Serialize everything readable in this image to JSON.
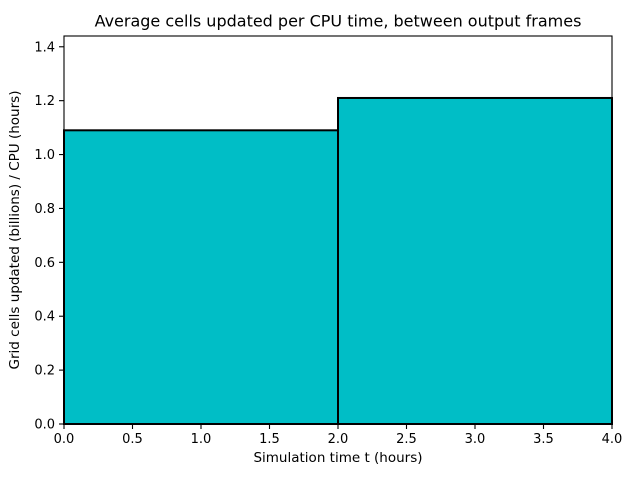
{
  "chart_data": {
    "type": "bar",
    "title": "Average cells updated per CPU time, between output frames",
    "xlabel": "Simulation time t (hours)",
    "ylabel": "Grid cells updated (billions) / CPU (hours)",
    "bins": [
      0,
      2,
      4
    ],
    "values": [
      1.09,
      1.21
    ],
    "xlim": [
      0,
      4
    ],
    "ylim": [
      0,
      1.44
    ],
    "xticks": [
      "0.0",
      "0.5",
      "1.0",
      "1.5",
      "2.0",
      "2.5",
      "3.0",
      "3.5",
      "4.0"
    ],
    "yticks": [
      "0.0",
      "0.2",
      "0.4",
      "0.6",
      "0.8",
      "1.0",
      "1.2",
      "1.4"
    ],
    "bar_color": "#00bec6",
    "edge_color": "#000000",
    "grid": false,
    "legend_position": "none"
  }
}
